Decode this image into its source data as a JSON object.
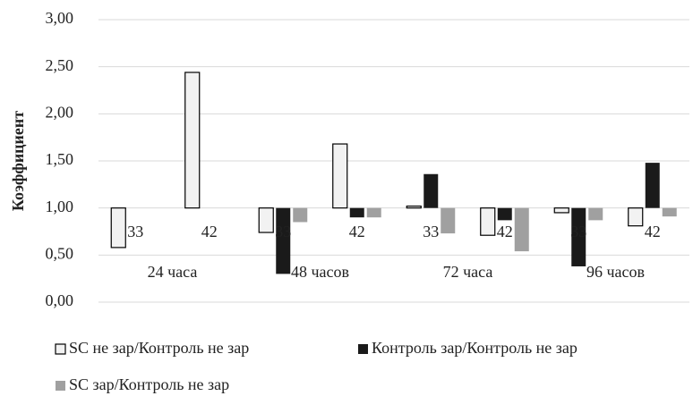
{
  "chart_data": {
    "type": "bar",
    "ylabel": "Коэффициент",
    "groups": [
      "24 часа",
      "48 часов",
      "72 часа",
      "96 часов"
    ],
    "categories": [
      "33",
      "42",
      "33",
      "42",
      "33",
      "42",
      "33",
      "42"
    ],
    "base": 1,
    "series": [
      {
        "name": "SC не зар/Контроль не зар",
        "color": "#f2f2f2",
        "edgecolor": "#000000",
        "values": [
          0.58,
          2.44,
          0.74,
          1.68,
          1.02,
          0.71,
          0.95,
          0.81
        ]
      },
      {
        "name": "Контроль зар/Контроль не зар",
        "color": "#1a1a1a",
        "values": [
          null,
          null,
          0.3,
          0.9,
          1.36,
          0.87,
          0.38,
          1.48
        ]
      },
      {
        "name": "SC зар/Контроль не зар",
        "color": "#a0a0a0",
        "values": [
          null,
          null,
          0.85,
          0.9,
          0.73,
          0.54,
          0.87,
          0.91
        ]
      }
    ],
    "ylim": [
      0,
      3
    ],
    "yticks": [
      {
        "value": 0,
        "label": "0,00"
      },
      {
        "value": 0.5,
        "label": "0,50"
      },
      {
        "value": 1,
        "label": "1,00"
      },
      {
        "value": 1.5,
        "label": "1,50"
      },
      {
        "value": 2,
        "label": "2,00"
      },
      {
        "value": 2.5,
        "label": "2,50"
      },
      {
        "value": 3,
        "label": "3,00"
      }
    ],
    "grid": true
  }
}
